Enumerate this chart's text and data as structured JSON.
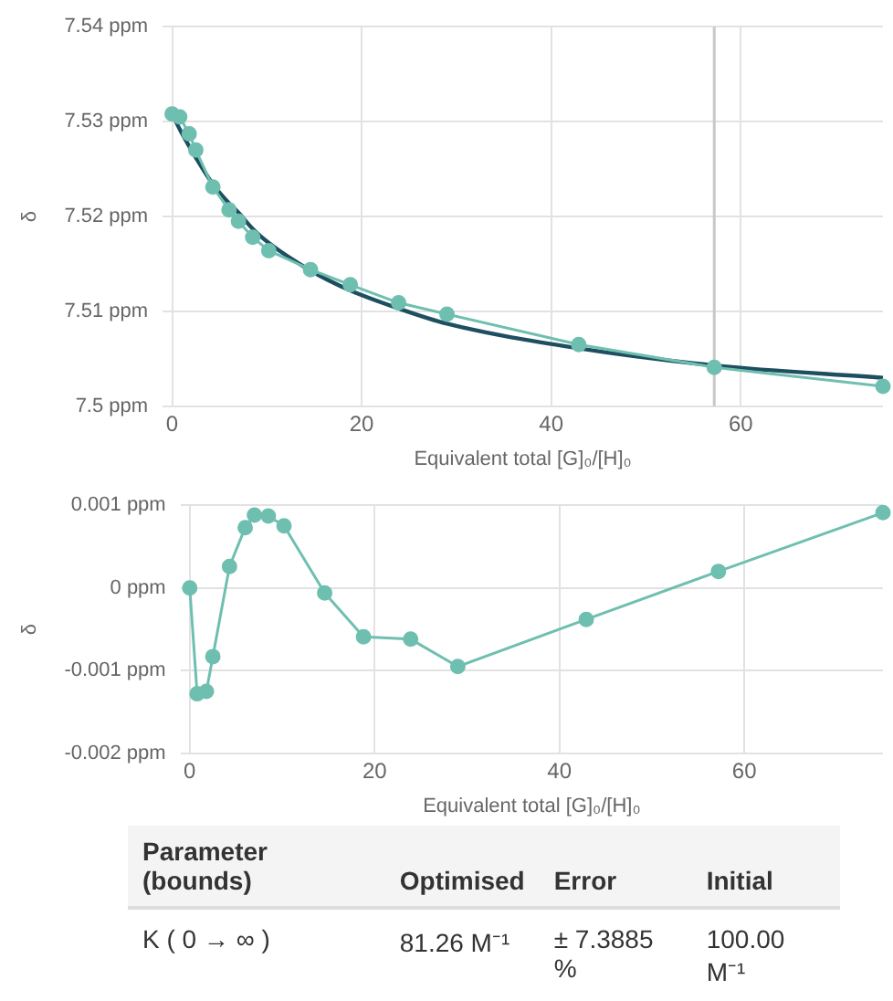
{
  "chart_data": [
    {
      "type": "line",
      "ylabel": "δ",
      "xlabel": "Equivalent total [G]₀/[H]₀",
      "xlim": [
        -1,
        75
      ],
      "xticks": [
        0,
        20,
        40,
        60
      ],
      "ylim": [
        7.5,
        7.54
      ],
      "yticks": [
        {
          "value": 7.5,
          "label": "7.5 ppm"
        },
        {
          "value": 7.51,
          "label": "7.51 ppm"
        },
        {
          "value": 7.52,
          "label": "7.52 ppm"
        },
        {
          "value": 7.53,
          "label": "7.53 ppm"
        },
        {
          "value": 7.54,
          "label": "7.54 ppm"
        }
      ],
      "grid": true,
      "legend": false,
      "marker": "circle",
      "line_style": "solid",
      "x": [
        0,
        0.8,
        1.8,
        2.5,
        4.3,
        6,
        7,
        8.5,
        10.2,
        14.6,
        18.8,
        23.9,
        29,
        42.9,
        57.2,
        75
      ],
      "series": [
        {
          "color": "#6fbfb0",
          "values": [
            7.5308,
            7.5305,
            7.5287,
            7.527,
            7.5231,
            7.5207,
            7.5195,
            7.5178,
            7.5164,
            7.5144,
            7.5128,
            7.5109,
            7.5097,
            7.5065,
            7.5041,
            7.5021
          ]
        },
        {
          "color": "#1d4f60",
          "marker": "none",
          "values": [
            7.5308,
            7.5292,
            7.5274,
            7.5262,
            7.5234,
            7.5214,
            7.5204,
            7.5187,
            7.5172,
            7.5143,
            7.5122,
            7.5103,
            7.5087,
            7.5061,
            7.5043,
            7.503
          ]
        }
      ],
      "ref_lines": [
        {
          "axis": "x",
          "value": 57.2,
          "color": "#c8c8c8"
        }
      ]
    },
    {
      "type": "line",
      "ylabel": "δ",
      "xlabel": "Equivalent total [G]₀/[H]₀",
      "xlim": [
        -1,
        75
      ],
      "xticks": [
        0,
        20,
        40,
        60
      ],
      "ylim": [
        -0.002,
        0.001
      ],
      "yticks": [
        {
          "value": -0.002,
          "label": "-0.002 ppm"
        },
        {
          "value": -0.001,
          "label": "-0.001 ppm"
        },
        {
          "value": 0,
          "label": "0 ppm"
        },
        {
          "value": 0.001,
          "label": "0.001 ppm"
        }
      ],
      "grid": true,
      "legend": false,
      "marker": "circle",
      "line_style": "solid",
      "x": [
        0,
        0.8,
        1.8,
        2.5,
        4.3,
        6,
        7,
        8.5,
        10.2,
        14.6,
        18.8,
        23.9,
        29,
        42.9,
        57.2,
        75
      ],
      "series": [
        {
          "color": "#6fbfb0",
          "values": [
            0,
            -0.00128,
            -0.00125,
            -0.00083,
            0.00026,
            0.00073,
            0.00088,
            0.00087,
            0.00075,
            -6e-05,
            -0.00059,
            -0.00062,
            -0.00095,
            -0.00038,
            0.0002,
            0.00091
          ]
        }
      ]
    },
    {
      "type": "other",
      "annotations": [
        "Parameter (bounds)",
        "Optimised",
        "Error",
        "Initial",
        "K ( 0 → ∞ )",
        "81.26 M⁻¹",
        "± 7.3885 %",
        "100.00 M⁻¹"
      ]
    }
  ]
}
